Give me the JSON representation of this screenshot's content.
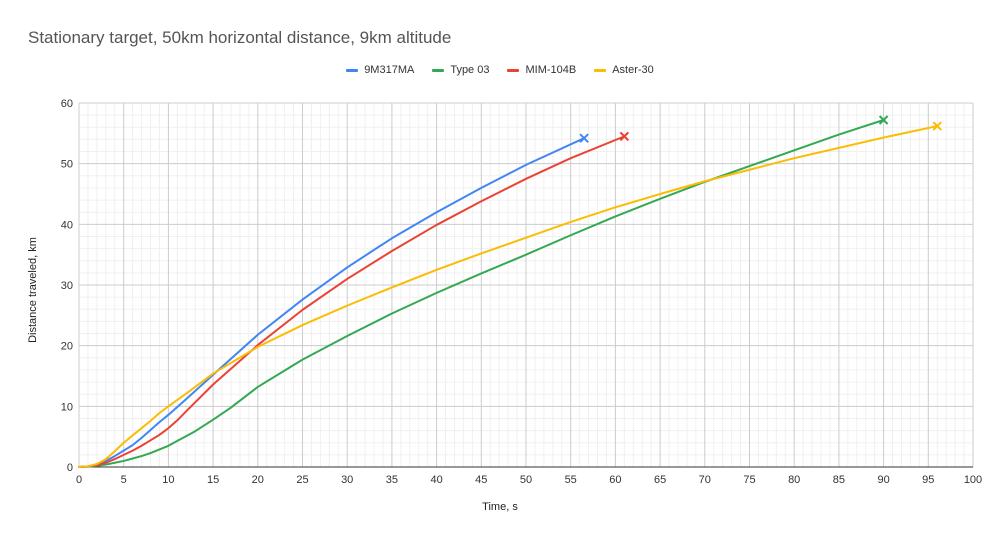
{
  "chart_data": {
    "type": "line",
    "title": "Stationary target, 50km horizontal distance, 9km altitude",
    "xlabel": "Time, s",
    "ylabel": "Distance traveled, km",
    "xlim": [
      0,
      100
    ],
    "ylim": [
      0,
      60
    ],
    "x_ticks": [
      "0",
      "5",
      "10",
      "15",
      "20",
      "25",
      "30",
      "35",
      "40",
      "45",
      "50",
      "55",
      "60",
      "65",
      "70",
      "75",
      "80",
      "85",
      "90",
      "95",
      "100"
    ],
    "y_ticks": [
      "0",
      "10",
      "20",
      "30",
      "40",
      "50",
      "60"
    ],
    "grid": true,
    "legend_position": "top",
    "series": [
      {
        "name": "9M317MA",
        "color": "#4285f4",
        "end_marker": "x",
        "points": [
          [
            0,
            0
          ],
          [
            1,
            0.1
          ],
          [
            2,
            0.4
          ],
          [
            3,
            1
          ],
          [
            4,
            1.8
          ],
          [
            5,
            2.7
          ],
          [
            6,
            3.6
          ],
          [
            7,
            4.8
          ],
          [
            8,
            6.1
          ],
          [
            9,
            7.4
          ],
          [
            10,
            8.6
          ],
          [
            12,
            11.2
          ],
          [
            15,
            15.2
          ],
          [
            20,
            21.8
          ],
          [
            25,
            27.6
          ],
          [
            30,
            32.9
          ],
          [
            35,
            37.7
          ],
          [
            40,
            42.0
          ],
          [
            45,
            46.0
          ],
          [
            50,
            49.8
          ],
          [
            56.5,
            54.2
          ]
        ]
      },
      {
        "name": "Type 03",
        "color": "#34a853",
        "end_marker": "x",
        "points": [
          [
            0,
            0
          ],
          [
            1,
            0.05
          ],
          [
            2,
            0.2
          ],
          [
            3,
            0.4
          ],
          [
            4,
            0.7
          ],
          [
            5,
            1
          ],
          [
            6,
            1.4
          ],
          [
            7,
            1.8
          ],
          [
            8,
            2.3
          ],
          [
            9,
            2.9
          ],
          [
            10,
            3.5
          ],
          [
            11,
            4.3
          ],
          [
            13,
            5.9
          ],
          [
            15,
            7.8
          ],
          [
            17,
            9.8
          ],
          [
            20,
            13.2
          ],
          [
            25,
            17.7
          ],
          [
            30,
            21.6
          ],
          [
            35,
            25.3
          ],
          [
            40,
            28.7
          ],
          [
            45,
            31.9
          ],
          [
            50,
            35.0
          ],
          [
            55,
            38.2
          ],
          [
            60,
            41.3
          ],
          [
            65,
            44.2
          ],
          [
            70,
            47.0
          ],
          [
            75,
            49.6
          ],
          [
            80,
            52.2
          ],
          [
            85,
            54.8
          ],
          [
            90,
            57.2
          ]
        ]
      },
      {
        "name": "MIM-104B",
        "color": "#ea4335",
        "end_marker": "x",
        "points": [
          [
            0,
            0
          ],
          [
            1,
            0.1
          ],
          [
            2,
            0.3
          ],
          [
            3,
            0.7
          ],
          [
            4,
            1.3
          ],
          [
            5,
            2
          ],
          [
            6,
            2.7
          ],
          [
            7,
            3.5
          ],
          [
            8,
            4.4
          ],
          [
            9,
            5.3
          ],
          [
            10,
            6.4
          ],
          [
            11,
            7.7
          ],
          [
            12,
            9.2
          ],
          [
            15,
            13.6
          ],
          [
            20,
            20.1
          ],
          [
            25,
            25.9
          ],
          [
            30,
            31.0
          ],
          [
            35,
            35.6
          ],
          [
            40,
            39.9
          ],
          [
            45,
            43.8
          ],
          [
            50,
            47.5
          ],
          [
            55,
            50.9
          ],
          [
            61,
            54.5
          ]
        ]
      },
      {
        "name": "Aster-30",
        "color": "#fbbc04",
        "end_marker": "x",
        "points": [
          [
            0,
            0
          ],
          [
            1,
            0.1
          ],
          [
            2,
            0.5
          ],
          [
            3,
            1.3
          ],
          [
            4,
            2.6
          ],
          [
            5,
            4
          ],
          [
            6,
            5.2
          ],
          [
            7,
            6.4
          ],
          [
            8,
            7.6
          ],
          [
            9,
            8.9
          ],
          [
            10,
            10
          ],
          [
            12,
            12.1
          ],
          [
            15,
            15.4
          ],
          [
            20,
            19.8
          ],
          [
            25,
            23.4
          ],
          [
            30,
            26.6
          ],
          [
            35,
            29.6
          ],
          [
            40,
            32.5
          ],
          [
            45,
            35.2
          ],
          [
            50,
            37.8
          ],
          [
            55,
            40.4
          ],
          [
            60,
            42.8
          ],
          [
            65,
            45.0
          ],
          [
            70,
            47.1
          ],
          [
            75,
            49.0
          ],
          [
            80,
            50.9
          ],
          [
            85,
            52.6
          ],
          [
            90,
            54.3
          ],
          [
            96,
            56.2
          ]
        ]
      }
    ]
  }
}
